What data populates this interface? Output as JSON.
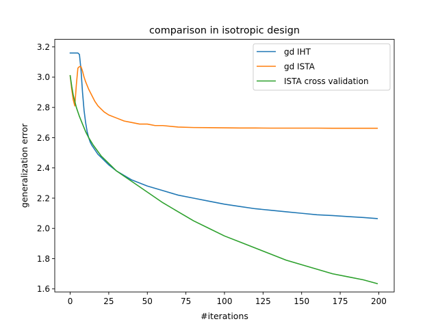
{
  "chart_data": {
    "type": "line",
    "title": "comparison in isotropic design",
    "xlabel": "#iterations",
    "ylabel": "generalization error",
    "xlim": [
      -10,
      210
    ],
    "ylim": [
      1.58,
      3.25
    ],
    "xticks": [
      0,
      25,
      50,
      75,
      100,
      125,
      150,
      175,
      200
    ],
    "xtick_labels": [
      "0",
      "25",
      "50",
      "75",
      "100",
      "125",
      "150",
      "175",
      "200"
    ],
    "yticks": [
      1.6,
      1.8,
      2.0,
      2.2,
      2.4,
      2.6,
      2.8,
      3.0,
      3.2
    ],
    "ytick_labels": [
      "1.6",
      "1.8",
      "2.0",
      "2.2",
      "2.4",
      "2.6",
      "2.8",
      "3.0",
      "3.2"
    ],
    "grid": false,
    "legend_position": "top-right",
    "series": [
      {
        "name": "gd IHT",
        "color": "#1f77b4",
        "x": [
          0,
          2,
          4,
          5,
          6,
          7,
          8,
          9,
          10,
          11,
          12,
          13,
          14,
          16,
          18,
          20,
          25,
          30,
          35,
          40,
          50,
          60,
          70,
          80,
          90,
          100,
          110,
          120,
          130,
          140,
          150,
          160,
          170,
          180,
          190,
          199
        ],
        "y": [
          3.16,
          3.16,
          3.16,
          3.16,
          3.15,
          3.05,
          2.9,
          2.78,
          2.7,
          2.64,
          2.6,
          2.57,
          2.55,
          2.52,
          2.49,
          2.47,
          2.42,
          2.38,
          2.35,
          2.32,
          2.28,
          2.25,
          2.22,
          2.2,
          2.18,
          2.16,
          2.145,
          2.13,
          2.12,
          2.11,
          2.1,
          2.09,
          2.085,
          2.078,
          2.072,
          2.065
        ]
      },
      {
        "name": "gd ISTA",
        "color": "#ff7f0e",
        "x": [
          0,
          1,
          2,
          3,
          4,
          5,
          6,
          7,
          8,
          9,
          10,
          12,
          14,
          16,
          18,
          20,
          22,
          25,
          30,
          35,
          40,
          45,
          50,
          55,
          60,
          70,
          80,
          90,
          100,
          110,
          120,
          130,
          140,
          150,
          160,
          170,
          180,
          190,
          199
        ],
        "y": [
          3.01,
          2.92,
          2.85,
          2.81,
          2.95,
          3.06,
          3.07,
          3.07,
          3.04,
          3.0,
          2.97,
          2.92,
          2.88,
          2.84,
          2.81,
          2.79,
          2.77,
          2.75,
          2.73,
          2.71,
          2.7,
          2.69,
          2.69,
          2.68,
          2.68,
          2.67,
          2.667,
          2.666,
          2.665,
          2.664,
          2.664,
          2.663,
          2.663,
          2.663,
          2.663,
          2.662,
          2.662,
          2.662,
          2.662
        ]
      },
      {
        "name": "ISTA cross validation",
        "color": "#2ca02c",
        "x": [
          0,
          1,
          2,
          3,
          4,
          5,
          6,
          8,
          10,
          12,
          15,
          20,
          25,
          30,
          40,
          50,
          60,
          70,
          80,
          90,
          100,
          110,
          120,
          130,
          140,
          150,
          160,
          170,
          180,
          190,
          199
        ],
        "y": [
          3.01,
          2.94,
          2.88,
          2.84,
          2.8,
          2.77,
          2.74,
          2.69,
          2.64,
          2.6,
          2.55,
          2.48,
          2.43,
          2.38,
          2.31,
          2.24,
          2.17,
          2.11,
          2.05,
          2.0,
          1.95,
          1.91,
          1.87,
          1.83,
          1.79,
          1.76,
          1.73,
          1.7,
          1.68,
          1.66,
          1.635
        ]
      }
    ]
  }
}
